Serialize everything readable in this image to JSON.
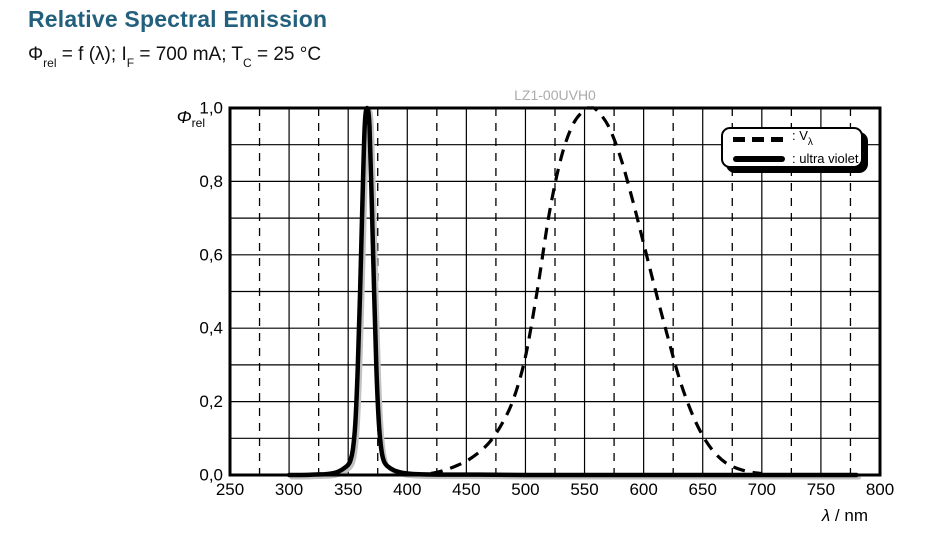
{
  "header": {
    "title": "Relative Spectral Emission",
    "subtitle_parts": [
      {
        "text": "Φ"
      },
      {
        "text": "rel",
        "sub": true
      },
      {
        "text": " = f (λ); I"
      },
      {
        "text": "F",
        "sub": true
      },
      {
        "text": " = 700 mA; T"
      },
      {
        "text": "C",
        "sub": true
      },
      {
        "text": " = 25 °C"
      }
    ]
  },
  "watermark": "LZ1-00UVH0",
  "colors": {
    "title": "#23607d",
    "watermark": "#ababab",
    "curve": "#000000",
    "curve_shadow": "#c2c2c2",
    "grid": "#000000",
    "background": "#ffffff"
  },
  "axis_titles": {
    "y_symbol": "Φ",
    "y_sub": "rel",
    "x_symbol": "λ",
    "x_rest": " / nm"
  },
  "legend": {
    "entries": [
      {
        "sample": "dashed",
        "prefix": ": V",
        "sub": "λ"
      },
      {
        "sample": "solid",
        "prefix": ": ultra violet",
        "sub": ""
      }
    ]
  },
  "chart_data": {
    "type": "line",
    "title": "LZ1-00UVH0",
    "xlabel": "λ / nm",
    "ylabel": "Φrel",
    "xlim": [
      250,
      800
    ],
    "ylim": [
      0,
      1.0
    ],
    "grid": true,
    "x_major_step": 50,
    "x_minor_step": 25,
    "y_grid_step": 0.1,
    "legend_position": "top-right",
    "x_tick_labels": [
      "250",
      "300",
      "350",
      "400",
      "450",
      "500",
      "550",
      "600",
      "650",
      "700",
      "750",
      "800"
    ],
    "y_ticks": [
      {
        "value": 1.0,
        "label": "1,0"
      },
      {
        "value": 0.8,
        "label": "0,8"
      },
      {
        "value": 0.6,
        "label": "0,6"
      },
      {
        "value": 0.4,
        "label": "0,4"
      },
      {
        "value": 0.2,
        "label": "0,2"
      },
      {
        "value": 0.0,
        "label": "0,0"
      }
    ],
    "series": [
      {
        "name": "Vλ",
        "line": "dashed",
        "points": [
          [
            420,
            0.004
          ],
          [
            430,
            0.0116
          ],
          [
            440,
            0.023
          ],
          [
            450,
            0.038
          ],
          [
            460,
            0.06
          ],
          [
            470,
            0.091
          ],
          [
            480,
            0.139
          ],
          [
            490,
            0.208
          ],
          [
            500,
            0.323
          ],
          [
            510,
            0.503
          ],
          [
            520,
            0.71
          ],
          [
            530,
            0.862
          ],
          [
            540,
            0.954
          ],
          [
            550,
            0.995
          ],
          [
            555,
            1.0
          ],
          [
            560,
            0.995
          ],
          [
            570,
            0.952
          ],
          [
            580,
            0.87
          ],
          [
            590,
            0.757
          ],
          [
            600,
            0.631
          ],
          [
            610,
            0.503
          ],
          [
            620,
            0.381
          ],
          [
            630,
            0.265
          ],
          [
            640,
            0.175
          ],
          [
            650,
            0.107
          ],
          [
            660,
            0.061
          ],
          [
            670,
            0.032
          ],
          [
            680,
            0.017
          ],
          [
            690,
            0.0082
          ],
          [
            700,
            0.0041
          ]
        ]
      },
      {
        "name": "ultra violet",
        "line": "solid",
        "points": [
          [
            300,
            0
          ],
          [
            310,
            0
          ],
          [
            320,
            0.001
          ],
          [
            330,
            0.002
          ],
          [
            336,
            0.004
          ],
          [
            340,
            0.007
          ],
          [
            344,
            0.013
          ],
          [
            348,
            0.022
          ],
          [
            350,
            0.028
          ],
          [
            352,
            0.04
          ],
          [
            354,
            0.07
          ],
          [
            356,
            0.14
          ],
          [
            358,
            0.28
          ],
          [
            360,
            0.49
          ],
          [
            362,
            0.74
          ],
          [
            364,
            0.95
          ],
          [
            366,
            1.0
          ],
          [
            368,
            0.95
          ],
          [
            370,
            0.74
          ],
          [
            372,
            0.49
          ],
          [
            374,
            0.28
          ],
          [
            376,
            0.14
          ],
          [
            378,
            0.07
          ],
          [
            380,
            0.04
          ],
          [
            382,
            0.028
          ],
          [
            384,
            0.022
          ],
          [
            388,
            0.014
          ],
          [
            392,
            0.009
          ],
          [
            396,
            0.006
          ],
          [
            400,
            0.004
          ],
          [
            410,
            0.002
          ],
          [
            430,
            0.001
          ],
          [
            460,
            0.001
          ],
          [
            500,
            0
          ],
          [
            550,
            0
          ],
          [
            600,
            0
          ],
          [
            650,
            0
          ],
          [
            700,
            0
          ],
          [
            740,
            0
          ],
          [
            780,
            0
          ]
        ]
      }
    ]
  }
}
